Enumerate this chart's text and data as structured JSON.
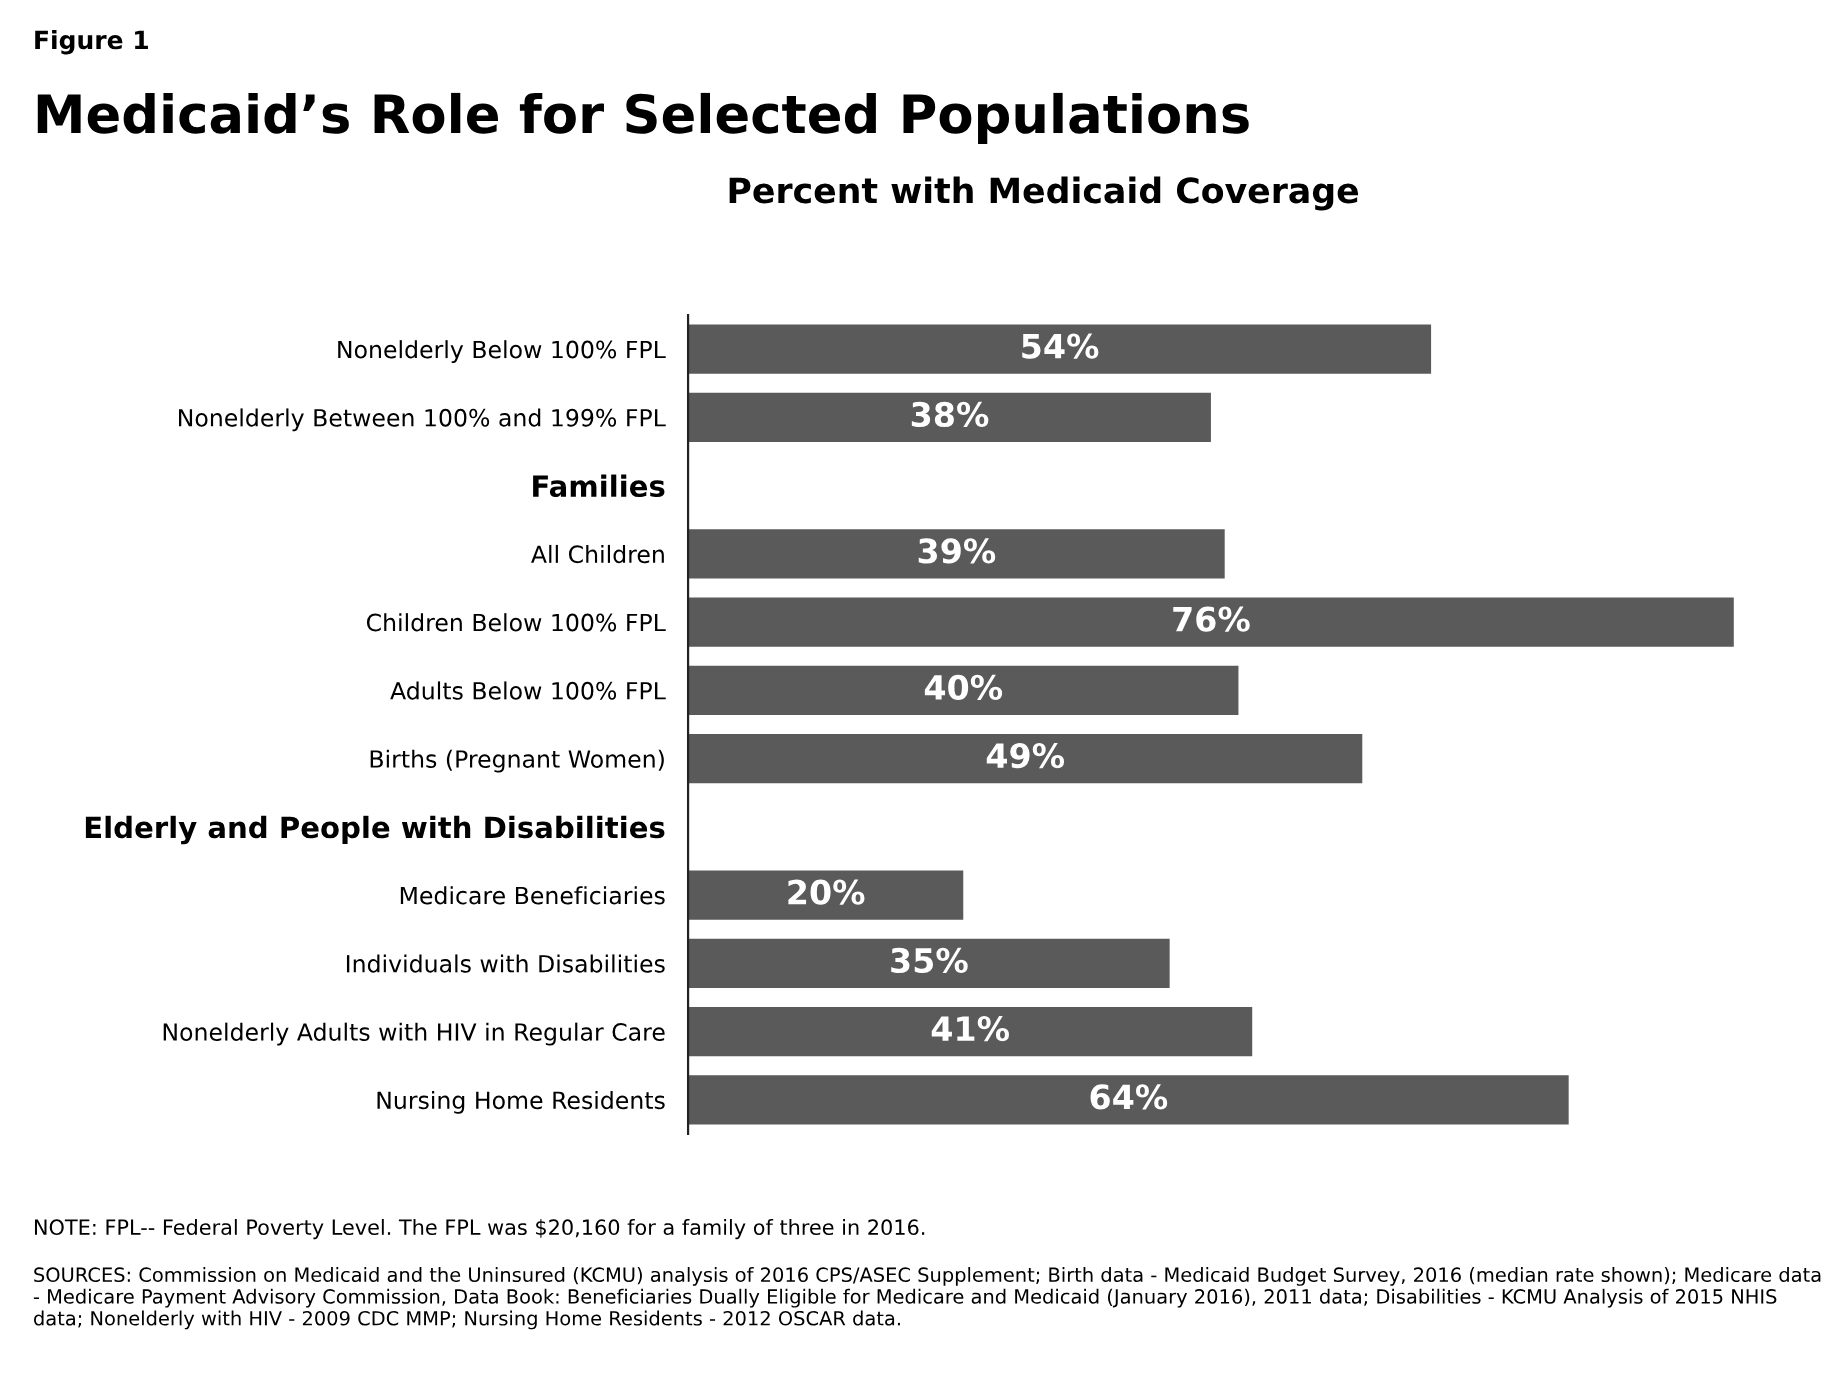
{
  "chart_data": {
    "type": "bar",
    "orientation": "horizontal",
    "title": "Medicaid’s Role for Selected Populations",
    "subtitle": "Percent with Medicaid Coverage",
    "categories": [
      "Nonelderly Below 100% FPL",
      "Nonelderly Between 100% and 199% FPL",
      "Families",
      "All Children",
      "Children Below 100% FPL",
      "Adults Below 100% FPL",
      "Births (Pregnant Women)",
      "Elderly and People with Disabilities",
      "Medicare Beneficiaries",
      "Individuals with Disabilities",
      "Nonelderly Adults with HIV in Regular Care",
      "Nursing Home Residents"
    ],
    "values": [
      54,
      38,
      null,
      39,
      76,
      40,
      49,
      null,
      20,
      35,
      41,
      64
    ],
    "value_labels": [
      "54%",
      "38%",
      null,
      "39%",
      "76%",
      "40%",
      "49%",
      null,
      "20%",
      "35%",
      "41%",
      "64%"
    ],
    "color": "#5a5a5a",
    "grid": false,
    "legend": false,
    "tick_labels": "y",
    "annotations": [
      "Figure 1",
      "NOTE: FPL-- Federal Poverty Level. The FPL was $20,160 for a family of three in 2016.",
      "SOURCES: Commission on Medicaid and the Uninsured (KCMU) analysis of 2016 CPS/ASEC Supplement; Birth data - Medicaid Budget Survey, 2016 (median rate shown); Medicare data - Medicare Payment Advisory Commission, Data Book: Beneficiaries Dually Eligible for Medicare and Medicaid (January 2016), 2011 data; Disabilities - KCMU Analysis of 2015 NHIS data; Nonelderly with HIV - 2009 CDC MMP; Nursing Home Residents - 2012 OSCAR data."
    ]
  }
}
